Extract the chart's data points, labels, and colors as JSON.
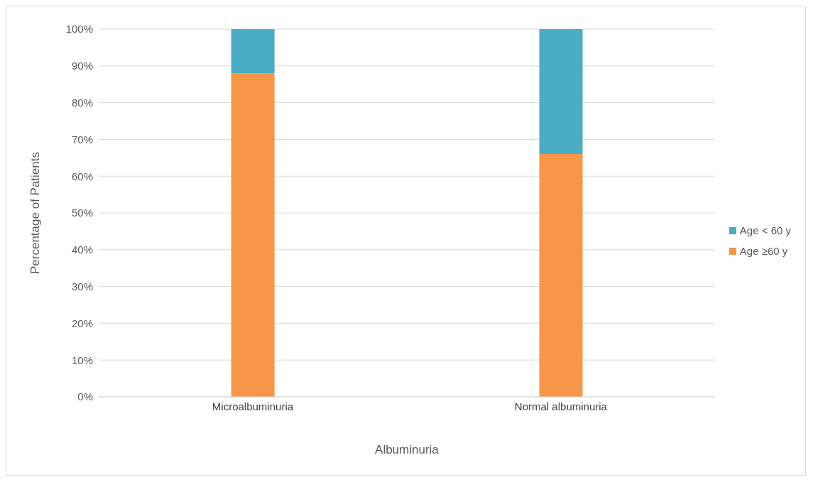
{
  "chart_data": {
    "type": "bar",
    "stacked": true,
    "xlabel": "Albuminuria",
    "ylabel": "Percentage of Patients",
    "categories": [
      "Microalbuminuria",
      "Normal albuminuria"
    ],
    "series": [
      {
        "name": "Age ≥60 y",
        "color": "#f79646",
        "values": [
          88,
          66
        ]
      },
      {
        "name": "Age < 60 y",
        "color": "#4bacc6",
        "values": [
          12,
          34
        ]
      }
    ],
    "ylim": [
      0,
      100
    ],
    "yticks": [
      {
        "value": 0,
        "label": "0%"
      },
      {
        "value": 10,
        "label": "10%"
      },
      {
        "value": 20,
        "label": "20%"
      },
      {
        "value": 30,
        "label": "30%"
      },
      {
        "value": 40,
        "label": "40%"
      },
      {
        "value": 50,
        "label": "50%"
      },
      {
        "value": 60,
        "label": "60%"
      },
      {
        "value": 70,
        "label": "70%"
      },
      {
        "value": 80,
        "label": "80%"
      },
      {
        "value": 90,
        "label": "90%"
      },
      {
        "value": 100,
        "label": "100%"
      }
    ],
    "grid": "y",
    "legend": "right"
  }
}
